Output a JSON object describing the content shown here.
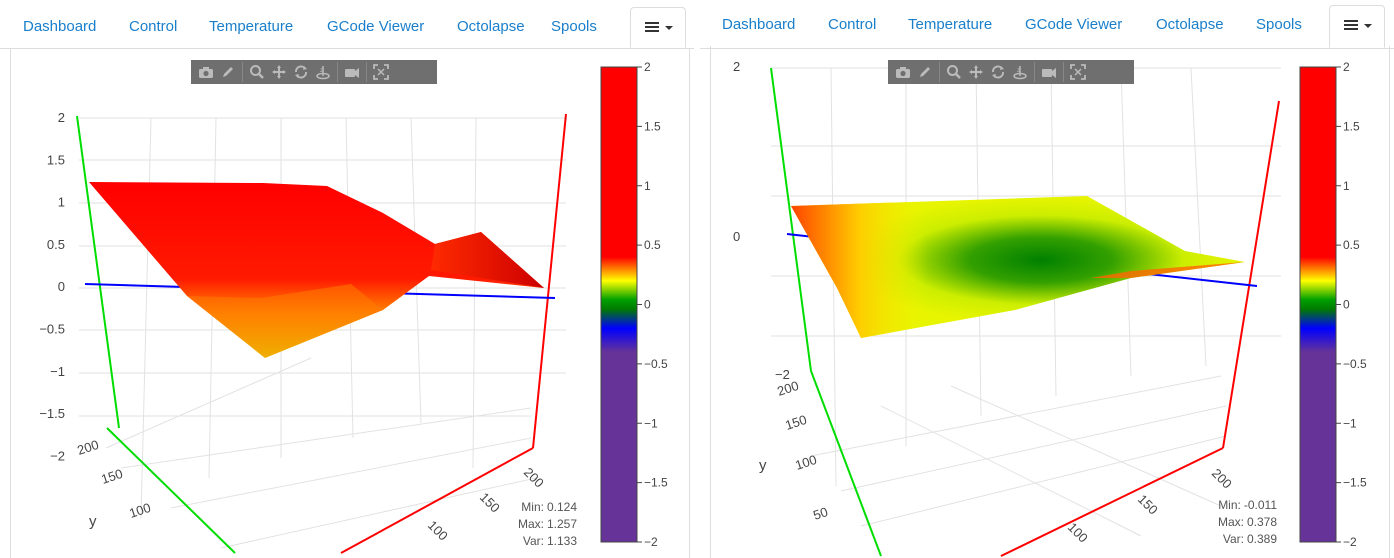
{
  "tabs": [
    "Dashboard",
    "Control",
    "Temperature",
    "GCode Viewer",
    "Octolapse",
    "Spools"
  ],
  "colorscale": {
    "ticks": [
      "2",
      "1.5",
      "1",
      "0.5",
      "0",
      "−0.5",
      "−1",
      "−1.5",
      "−2"
    ],
    "colors": {
      "high": "#ff0000",
      "yellow": "#ffff00",
      "green": "#008000",
      "blue": "#0000ff",
      "low": "#663399"
    }
  },
  "axis_colors": {
    "x": "#ff0000",
    "y": "#00cc00",
    "z": "#0000ff"
  },
  "left_plot": {
    "z_ticks": [
      "2",
      "1.5",
      "1",
      "0.5",
      "0",
      "−0.5",
      "−1",
      "−1.5",
      "−2"
    ],
    "y_ticks": [
      "200",
      "150",
      "100"
    ],
    "y_label": "y",
    "x_ticks": [
      "200",
      "150",
      "100"
    ],
    "stats": {
      "min_label": "Min:",
      "min": "0.124",
      "max_label": "Max:",
      "max": "1.257",
      "var_label": "Var:",
      "var": "1.133"
    }
  },
  "right_plot": {
    "z_ticks": [
      "2",
      "0",
      "−2"
    ],
    "y_ticks": [
      "200",
      "150",
      "100",
      "50"
    ],
    "y_label": "y",
    "x_ticks": [
      "200",
      "150",
      "100"
    ],
    "stats": {
      "min_label": "Min:",
      "min": "-0.011",
      "max_label": "Max:",
      "max": "0.378",
      "var_label": "Var:",
      "var": "0.389"
    }
  },
  "modebar_icons": [
    "camera-icon",
    "pencil-icon",
    "zoom-icon",
    "pan-icon",
    "orbit-icon",
    "turntable-icon",
    "reset-camera-icon",
    "autoscale-icon"
  ]
}
